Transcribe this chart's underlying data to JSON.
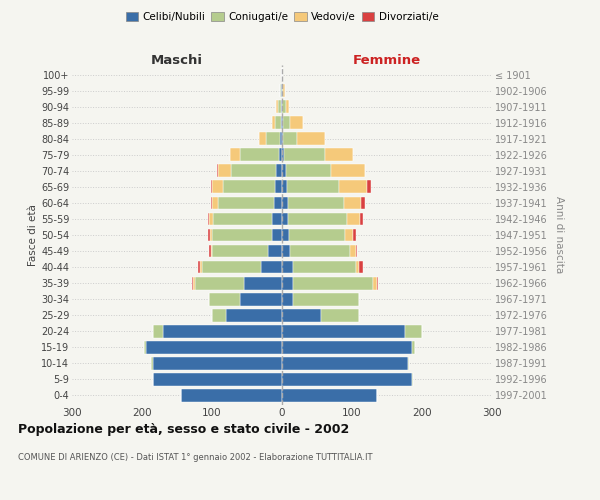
{
  "age_groups": [
    "0-4",
    "5-9",
    "10-14",
    "15-19",
    "20-24",
    "25-29",
    "30-34",
    "35-39",
    "40-44",
    "45-49",
    "50-54",
    "55-59",
    "60-64",
    "65-69",
    "70-74",
    "75-79",
    "80-84",
    "85-89",
    "90-94",
    "95-99",
    "100+"
  ],
  "birth_years": [
    "1997-2001",
    "1992-1996",
    "1987-1991",
    "1982-1986",
    "1977-1981",
    "1972-1976",
    "1967-1971",
    "1962-1966",
    "1957-1961",
    "1952-1956",
    "1947-1951",
    "1942-1946",
    "1937-1941",
    "1932-1936",
    "1927-1931",
    "1922-1926",
    "1917-1921",
    "1912-1916",
    "1907-1911",
    "1902-1906",
    "≤ 1901"
  ],
  "maschi": {
    "celibi": [
      145,
      185,
      185,
      195,
      170,
      80,
      60,
      55,
      30,
      20,
      15,
      14,
      12,
      10,
      8,
      5,
      3,
      2,
      1,
      1,
      0
    ],
    "coniugati": [
      0,
      0,
      2,
      2,
      15,
      20,
      45,
      70,
      85,
      80,
      85,
      85,
      80,
      75,
      65,
      55,
      20,
      8,
      5,
      2,
      0
    ],
    "vedovi": [
      0,
      0,
      0,
      0,
      0,
      0,
      0,
      2,
      2,
      2,
      3,
      5,
      8,
      15,
      18,
      15,
      10,
      5,
      2,
      0,
      0
    ],
    "divorziati": [
      0,
      0,
      0,
      0,
      0,
      0,
      0,
      2,
      3,
      2,
      3,
      2,
      2,
      2,
      2,
      0,
      0,
      0,
      0,
      0,
      0
    ]
  },
  "femmine": {
    "nubili": [
      135,
      185,
      180,
      185,
      175,
      55,
      15,
      15,
      15,
      12,
      10,
      8,
      8,
      7,
      5,
      3,
      2,
      2,
      0,
      0,
      0
    ],
    "coniugate": [
      0,
      2,
      2,
      5,
      25,
      55,
      95,
      115,
      90,
      85,
      80,
      85,
      80,
      75,
      65,
      58,
      20,
      10,
      5,
      2,
      0
    ],
    "vedove": [
      0,
      0,
      0,
      0,
      0,
      0,
      0,
      5,
      5,
      8,
      12,
      18,
      25,
      40,
      48,
      40,
      40,
      18,
      5,
      2,
      0
    ],
    "divorziate": [
      0,
      0,
      0,
      0,
      0,
      0,
      0,
      2,
      5,
      2,
      3,
      5,
      5,
      5,
      0,
      0,
      0,
      0,
      0,
      0,
      0
    ]
  },
  "colors": {
    "celibi": "#3a6ea8",
    "coniugati": "#b5cc8e",
    "vedovi": "#f5c97a",
    "divorziati": "#d94040"
  },
  "legend_labels": [
    "Celibi/Nubili",
    "Coniugati/e",
    "Vedovi/e",
    "Divorziati/e"
  ],
  "title": "Popolazione per età, sesso e stato civile - 2002",
  "subtitle": "COMUNE DI ARIENZO (CE) - Dati ISTAT 1° gennaio 2002 - Elaborazione TUTTITALIA.IT",
  "xlabel_left": "Maschi",
  "xlabel_right": "Femmine",
  "ylabel_left": "Fasce di età",
  "ylabel_right": "Anni di nascita",
  "xlim": 300,
  "bg_color": "#f5f5f0",
  "plot_bg": "#f5f5f0",
  "grid_color": "#cccccc"
}
